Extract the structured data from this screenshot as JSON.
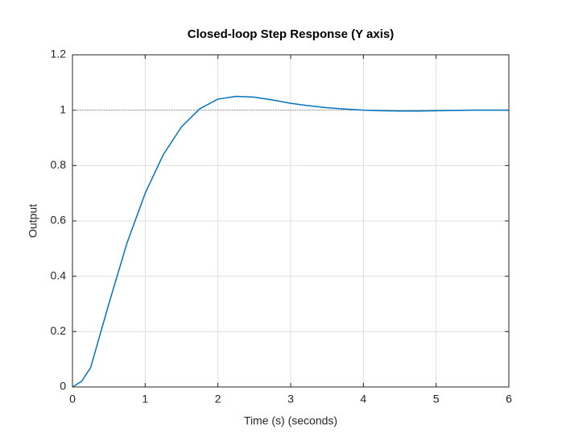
{
  "chart_data": {
    "type": "line",
    "title": "Closed-loop Step Response (Y axis)",
    "xlabel": "Time (s) (seconds)",
    "ylabel": "Output",
    "x": [
      0,
      0.125,
      0.25,
      0.5,
      0.75,
      1,
      1.25,
      1.5,
      1.75,
      2,
      2.25,
      2.5,
      2.75,
      3,
      3.25,
      3.5,
      3.75,
      4,
      4.25,
      4.5,
      4.75,
      5,
      5.25,
      5.5,
      5.75,
      6
    ],
    "series": [
      {
        "color": "#0072bd",
        "values": [
          0,
          0.02,
          0.07,
          0.3,
          0.52,
          0.7,
          0.84,
          0.94,
          1.005,
          1.04,
          1.05,
          1.047,
          1.037,
          1.025,
          1.016,
          1.009,
          1.004,
          1.0,
          0.998,
          0.997,
          0.997,
          0.998,
          0.999,
          1.0,
          1.0,
          1.0
        ]
      }
    ],
    "hline": 1,
    "xlim": [
      0,
      6
    ],
    "xticks": [
      0,
      1,
      2,
      3,
      4,
      5,
      6
    ],
    "ylim": [
      0,
      1.2
    ],
    "yticks": [
      0,
      0.2,
      0.4,
      0.6,
      0.8,
      1,
      1.2
    ],
    "grid": true
  }
}
